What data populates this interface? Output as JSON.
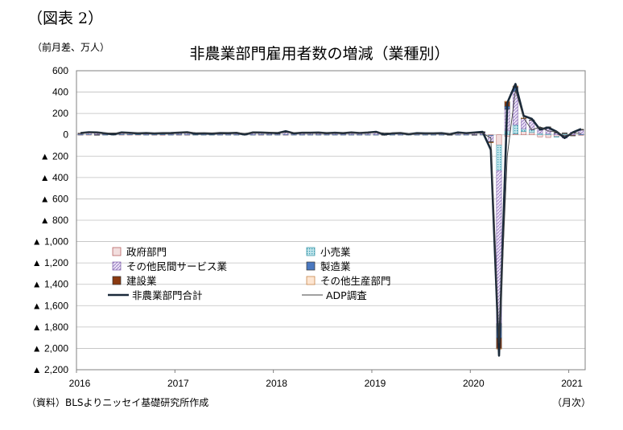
{
  "figure_label": "（図表 2）",
  "unit_label": "（前月差、万人）",
  "source_note": "（資料）BLSよりニッセイ基礎研究所作成",
  "x_unit": "（月次）",
  "chart_data": {
    "type": "bar",
    "title": "非農業部門雇用者数の増減（業種別）",
    "ylim": [
      -2200,
      600
    ],
    "y_ticks": [
      600,
      400,
      200,
      0,
      -200,
      -400,
      -600,
      -800,
      -1000,
      -1200,
      -1400,
      -1600,
      -1800,
      -2000,
      -2200
    ],
    "y_tick_labels": [
      "600",
      "400",
      "200",
      "0",
      "▲ 200",
      "▲ 400",
      "▲ 600",
      "▲ 800",
      "▲ 1,000",
      "▲ 1,200",
      "▲ 1,400",
      "▲ 1,600",
      "▲ 1,800",
      "▲ 2,000",
      "▲ 2,200"
    ],
    "x_tick_labels": [
      "2016",
      "2017",
      "2018",
      "2019",
      "2020",
      "2021"
    ],
    "grid": true,
    "legend_position": "center-left",
    "stacked": true,
    "months": [
      "2016-01",
      "2016-02",
      "2016-03",
      "2016-04",
      "2016-05",
      "2016-06",
      "2016-07",
      "2016-08",
      "2016-09",
      "2016-10",
      "2016-11",
      "2016-12",
      "2017-01",
      "2017-02",
      "2017-03",
      "2017-04",
      "2017-05",
      "2017-06",
      "2017-07",
      "2017-08",
      "2017-09",
      "2017-10",
      "2017-11",
      "2017-12",
      "2018-01",
      "2018-02",
      "2018-03",
      "2018-04",
      "2018-05",
      "2018-06",
      "2018-07",
      "2018-08",
      "2018-09",
      "2018-10",
      "2018-11",
      "2018-12",
      "2019-01",
      "2019-02",
      "2019-03",
      "2019-04",
      "2019-05",
      "2019-06",
      "2019-07",
      "2019-08",
      "2019-09",
      "2019-10",
      "2019-11",
      "2019-12",
      "2020-01",
      "2020-02",
      "2020-03",
      "2020-04",
      "2020-05",
      "2020-06",
      "2020-07",
      "2020-08",
      "2020-09",
      "2020-10",
      "2020-11",
      "2020-12",
      "2021-01",
      "2021-02"
    ],
    "series": [
      {
        "name": "政府部門",
        "kind": "bar",
        "color": "#f2dede",
        "hatch": "none",
        "values": [
          1,
          2,
          1,
          1,
          1,
          2,
          2,
          2,
          1,
          1,
          1,
          1,
          1,
          1,
          1,
          1,
          1,
          1,
          1,
          1,
          1,
          1,
          1,
          1,
          1,
          1,
          1,
          1,
          1,
          1,
          1,
          1,
          1,
          1,
          1,
          1,
          1,
          1,
          1,
          1,
          1,
          1,
          1,
          1,
          1,
          1,
          1,
          1,
          1,
          2,
          -4,
          -98,
          -16,
          9,
          30,
          21,
          -19,
          -25,
          -17,
          -6,
          -6,
          -2
        ]
      },
      {
        "name": "小売業",
        "kind": "bar",
        "color": "#9fd3dc",
        "hatch": "dots",
        "values": [
          2,
          3,
          3,
          1,
          1,
          3,
          2,
          2,
          1,
          2,
          3,
          1,
          2,
          2,
          1,
          1,
          1,
          1,
          1,
          1,
          1,
          1,
          2,
          1,
          1,
          2,
          1,
          1,
          1,
          1,
          1,
          1,
          1,
          1,
          1,
          1,
          1,
          0,
          1,
          1,
          1,
          1,
          1,
          1,
          1,
          1,
          1,
          1,
          1,
          1,
          -4,
          -238,
          37,
          84,
          26,
          25,
          14,
          11,
          -3,
          12,
          0,
          4
        ]
      },
      {
        "name": "その他民間サービス業",
        "kind": "bar",
        "color": "#d8c8ec",
        "hatch": "diag",
        "values": [
          10,
          18,
          12,
          8,
          2,
          14,
          13,
          9,
          12,
          9,
          10,
          10,
          13,
          13,
          6,
          11,
          8,
          12,
          11,
          11,
          2,
          17,
          14,
          11,
          9,
          21,
          9,
          13,
          13,
          12,
          8,
          14,
          9,
          15,
          12,
          14,
          20,
          2,
          11,
          13,
          4,
          9,
          10,
          11,
          11,
          8,
          14,
          12,
          17,
          21,
          -57,
          -1432,
          203,
          312,
          96,
          90,
          53,
          53,
          18,
          -25,
          25,
          42
        ]
      },
      {
        "name": "製造業",
        "kind": "bar",
        "color": "#4a78c0",
        "hatch": "none",
        "values": [
          1,
          0,
          -1,
          1,
          0,
          1,
          0,
          0,
          0,
          0,
          0,
          1,
          1,
          3,
          1,
          1,
          0,
          1,
          1,
          3,
          1,
          2,
          3,
          2,
          1,
          3,
          2,
          2,
          2,
          3,
          3,
          1,
          2,
          3,
          2,
          3,
          1,
          0,
          0,
          1,
          0,
          1,
          1,
          0,
          0,
          -4,
          5,
          0,
          -1,
          1,
          -2,
          -136,
          27,
          36,
          3,
          3,
          0,
          3,
          3,
          3,
          0,
          2
        ]
      },
      {
        "name": "建設業",
        "kind": "bar",
        "color": "#8b3a10",
        "hatch": "none",
        "values": [
          2,
          2,
          3,
          1,
          1,
          2,
          1,
          0,
          1,
          1,
          1,
          1,
          3,
          5,
          1,
          0,
          1,
          1,
          1,
          2,
          1,
          1,
          2,
          3,
          3,
          6,
          1,
          2,
          2,
          1,
          1,
          2,
          2,
          2,
          1,
          2,
          5,
          -1,
          1,
          1,
          0,
          2,
          1,
          1,
          2,
          1,
          1,
          1,
          4,
          4,
          -4,
          -98,
          46,
          15,
          2,
          1,
          2,
          8,
          2,
          3,
          -1,
          4
        ]
      },
      {
        "name": "その他生産部門",
        "kind": "bar",
        "color": "#fde6d2",
        "hatch": "none",
        "values": [
          0,
          0,
          0,
          0,
          0,
          0,
          0,
          0,
          0,
          0,
          0,
          0,
          0,
          0,
          0,
          0,
          0,
          0,
          0,
          0,
          0,
          0,
          0,
          0,
          0,
          0,
          0,
          0,
          0,
          0,
          0,
          0,
          0,
          0,
          0,
          0,
          0,
          0,
          0,
          0,
          0,
          0,
          0,
          0,
          0,
          0,
          0,
          0,
          0,
          0,
          -1,
          -6,
          1,
          1,
          1,
          0,
          0,
          0,
          0,
          0,
          0,
          0
        ]
      },
      {
        "name": "非農業部門合計",
        "kind": "line",
        "color": "#1a2a3a",
        "values": [
          16,
          24,
          22,
          14,
          5,
          22,
          18,
          14,
          16,
          13,
          15,
          16,
          20,
          24,
          11,
          14,
          11,
          16,
          15,
          18,
          2,
          22,
          21,
          18,
          16,
          33,
          14,
          19,
          19,
          21,
          15,
          19,
          15,
          22,
          17,
          21,
          28,
          2,
          14,
          17,
          6,
          15,
          14,
          14,
          15,
          6,
          22,
          15,
          21,
          27,
          -140,
          -2068,
          298,
          476,
          178,
          150,
          49,
          68,
          30,
          -30,
          23,
          54
        ]
      },
      {
        "name": "ADP調査",
        "kind": "line",
        "color": "#404040",
        "values": [
          18,
          20,
          20,
          16,
          17,
          17,
          18,
          18,
          15,
          15,
          18,
          16,
          22,
          24,
          20,
          18,
          18,
          16,
          19,
          20,
          13,
          23,
          18,
          22,
          21,
          22,
          21,
          19,
          19,
          18,
          17,
          16,
          19,
          21,
          18,
          22,
          20,
          18,
          16,
          20,
          8,
          11,
          14,
          13,
          12,
          10,
          12,
          14,
          16,
          15,
          -30,
          -1950,
          -200,
          420,
          160,
          45,
          75,
          35,
          30,
          -12,
          18,
          12
        ]
      }
    ]
  }
}
